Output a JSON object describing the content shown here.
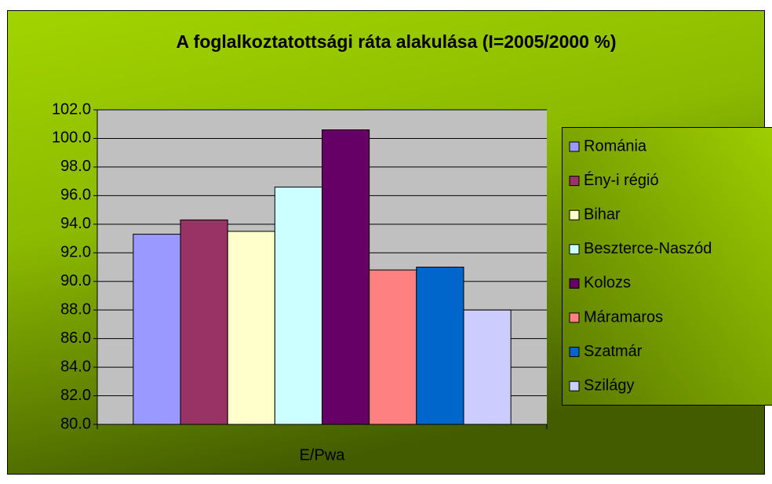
{
  "chart_data": {
    "type": "bar",
    "title": "A foglalkoztatottsági ráta alakulása (I=2005/2000 %)",
    "categories": [
      "E/Pwa"
    ],
    "series": [
      {
        "name": "Románia",
        "color": "#9999ff",
        "values": [
          93.3
        ]
      },
      {
        "name": "Ény-i régió",
        "color": "#993366",
        "values": [
          94.3
        ]
      },
      {
        "name": "Bihar",
        "color": "#ffffcc",
        "values": [
          93.5
        ]
      },
      {
        "name": "Beszterce-Naszód",
        "color": "#ccffff",
        "values": [
          96.6
        ]
      },
      {
        "name": "Kolozs",
        "color": "#660066",
        "values": [
          100.6
        ]
      },
      {
        "name": "Máramaros",
        "color": "#ff8080",
        "values": [
          90.8
        ]
      },
      {
        "name": "Szatmár",
        "color": "#0066cc",
        "values": [
          91.0
        ]
      },
      {
        "name": "Szilágy",
        "color": "#ccccff",
        "values": [
          88.0
        ]
      }
    ],
    "ylim": [
      80,
      102
    ],
    "yticks": [
      {
        "value": 80,
        "label": "80.0"
      },
      {
        "value": 82,
        "label": "82.0"
      },
      {
        "value": 84,
        "label": "84.0"
      },
      {
        "value": 86,
        "label": "86.0"
      },
      {
        "value": 88,
        "label": "88.0"
      },
      {
        "value": 90,
        "label": "90.0"
      },
      {
        "value": 92,
        "label": "92.0"
      },
      {
        "value": 94,
        "label": "94.0"
      },
      {
        "value": 96,
        "label": "96.0"
      },
      {
        "value": 98,
        "label": "98.0"
      },
      {
        "value": 100,
        "label": "100.0"
      },
      {
        "value": 102,
        "label": "102.0"
      }
    ],
    "grid": true,
    "legend": "right"
  }
}
